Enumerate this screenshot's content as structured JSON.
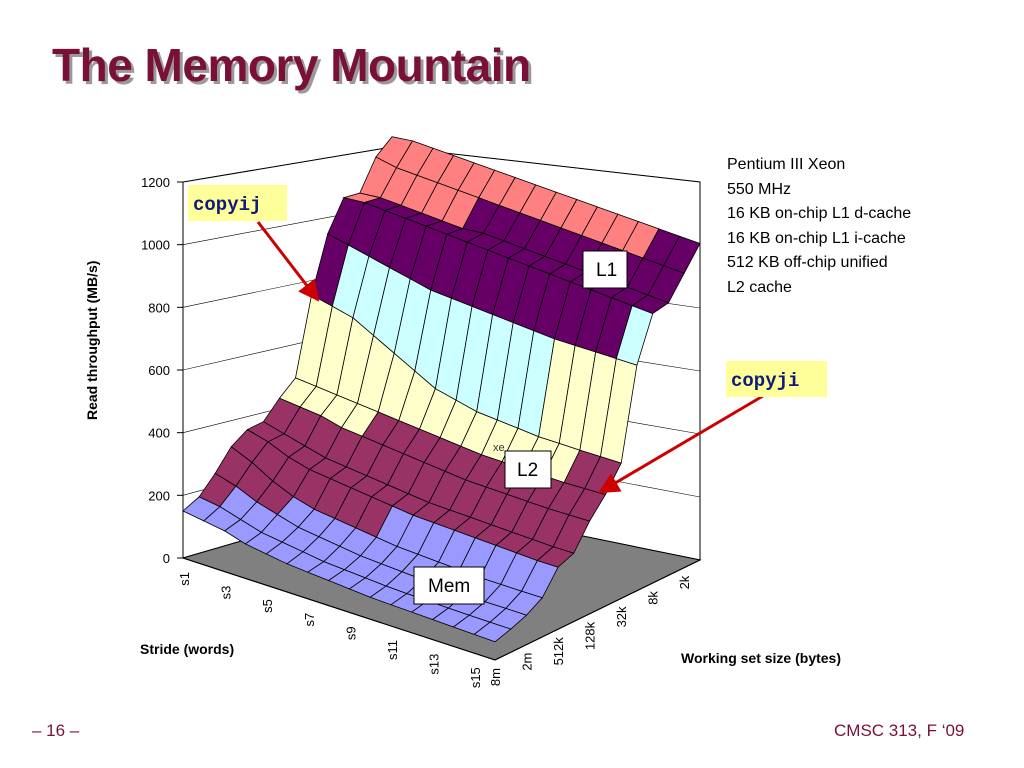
{
  "slide": {
    "title": "The Memory Mountain",
    "page_number": "– 16 –",
    "course": "CMSC 313, F ‘09"
  },
  "processor_info": {
    "lines": [
      "Pentium III Xeon",
      "550 MHz",
      "16 KB on-chip L1 d-cache",
      "16 KB on-chip L1 i-cache",
      "512 KB  off-chip unified",
      "L2 cache"
    ]
  },
  "callouts": {
    "copyij": "copyij",
    "copyji": "copyji",
    "l1": "L1",
    "l2": "L2",
    "mem": "Mem",
    "xe": "xe"
  },
  "colors": {
    "title": "#7a1038",
    "band_0_200": "#9999ff",
    "band_200_400": "#993366",
    "band_400_600": "#ffffcc",
    "band_600_800": "#ccffff",
    "band_800_1000": "#660066",
    "band_1000_1200": "#ff8080",
    "floor": "#808080",
    "callout_bg": "#ffff99",
    "arrow": "#cc0000"
  },
  "chart_data": {
    "type": "surface",
    "title": "",
    "ylabel": "Read throughput (MB/s)",
    "xlabel": "Stride (words)",
    "zlabel": "Working set size (bytes)",
    "y_ticks": [
      "0",
      "200",
      "400",
      "600",
      "800",
      "1000",
      "1200"
    ],
    "ylim": [
      0,
      1200
    ],
    "stride_ticks": [
      "s1",
      "s3",
      "s5",
      "s7",
      "s9",
      "s11",
      "s13",
      "s15"
    ],
    "strides": [
      "s1",
      "s2",
      "s3",
      "s4",
      "s5",
      "s6",
      "s7",
      "s8",
      "s9",
      "s10",
      "s11",
      "s12",
      "s13",
      "s14",
      "s15",
      "s16"
    ],
    "size_ticks": [
      "8m",
      "2m",
      "512k",
      "128k",
      "32k",
      "8k",
      "2k"
    ],
    "sizes": [
      "8m",
      "4m",
      "2m",
      "1m",
      "512k",
      "256k",
      "128k",
      "64k",
      "32k",
      "16k",
      "8k",
      "4k",
      "2k",
      "1k"
    ],
    "values": [
      [
        150,
        180,
        240,
        310,
        350,
        360,
        420,
        470,
        720,
        900,
        1000,
        1000,
        1100,
        1150
      ],
      [
        140,
        170,
        220,
        280,
        330,
        340,
        410,
        460,
        700,
        880,
        1000,
        1000,
        1080,
        1150
      ],
      [
        130,
        150,
        190,
        240,
        300,
        320,
        400,
        450,
        680,
        860,
        990,
        990,
        1070,
        1140
      ],
      [
        110,
        130,
        170,
        210,
        280,
        300,
        380,
        440,
        640,
        840,
        980,
        980,
        1060,
        1130
      ],
      [
        100,
        120,
        150,
        190,
        270,
        290,
        370,
        430,
        600,
        820,
        970,
        970,
        1050,
        1120
      ],
      [
        90,
        110,
        140,
        180,
        260,
        280,
        360,
        420,
        560,
        800,
        960,
        960,
        1040,
        1110
      ],
      [
        85,
        100,
        130,
        170,
        250,
        270,
        350,
        410,
        520,
        790,
        950,
        960,
        1030,
        1100
      ],
      [
        80,
        95,
        120,
        160,
        240,
        260,
        340,
        400,
        500,
        780,
        940,
        950,
        1020,
        1090
      ],
      [
        75,
        90,
        115,
        150,
        230,
        250,
        330,
        390,
        480,
        770,
        930,
        940,
        1010,
        1080
      ],
      [
        70,
        85,
        110,
        145,
        225,
        245,
        320,
        380,
        470,
        760,
        920,
        930,
        1000,
        1070
      ],
      [
        68,
        82,
        105,
        140,
        220,
        240,
        315,
        375,
        460,
        750,
        910,
        920,
        990,
        1060
      ],
      [
        66,
        80,
        100,
        135,
        215,
        235,
        310,
        370,
        450,
        740,
        900,
        910,
        980,
        1050
      ],
      [
        64,
        78,
        98,
        130,
        210,
        230,
        305,
        365,
        445,
        735,
        890,
        900,
        970,
        1040
      ],
      [
        62,
        76,
        96,
        128,
        205,
        225,
        300,
        360,
        440,
        730,
        880,
        890,
        960,
        1030
      ],
      [
        60,
        75,
        95,
        126,
        200,
        220,
        298,
        358,
        436,
        725,
        870,
        880,
        950,
        1020
      ],
      [
        58,
        74,
        94,
        125,
        198,
        218,
        296,
        356,
        432,
        720,
        860,
        870,
        940,
        1010
      ]
    ],
    "grid": true
  }
}
